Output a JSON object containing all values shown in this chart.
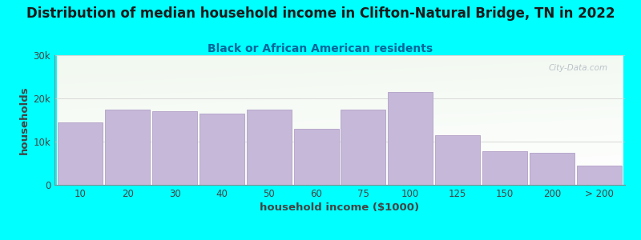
{
  "title": "Distribution of median household income in Clifton-Natural Bridge, TN in 2022",
  "subtitle": "Black or African American residents",
  "xlabel": "household income ($1000)",
  "ylabel": "households",
  "background_color": "#00FFFF",
  "bar_color": "#C5B8D8",
  "bar_edge_color": "#B8A8CC",
  "categories": [
    "10",
    "20",
    "30",
    "40",
    "50",
    "60",
    "75",
    "100",
    "125",
    "150",
    "200",
    "> 200"
  ],
  "values": [
    14500,
    17500,
    17000,
    16500,
    17500,
    13000,
    17500,
    21500,
    11500,
    7800,
    7500,
    4500
  ],
  "ylim": [
    0,
    30000
  ],
  "yticks": [
    0,
    10000,
    20000,
    30000
  ],
  "ytick_labels": [
    "0",
    "10k",
    "20k",
    "30k"
  ],
  "title_fontsize": 12,
  "subtitle_fontsize": 10,
  "axis_label_fontsize": 9.5,
  "tick_fontsize": 8.5,
  "title_color": "#1a1a1a",
  "subtitle_color": "#006699",
  "watermark_text": "City-Data.com",
  "watermark_color": "#b0b8c0"
}
